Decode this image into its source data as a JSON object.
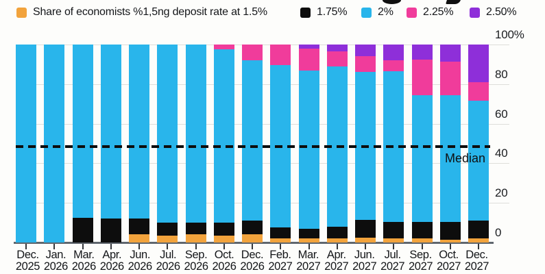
{
  "legend": {
    "items": [
      {
        "label": "Share of economists %1,5ng deposit rate at 1.5%",
        "color": "#f2a33c"
      },
      {
        "label": "1.75%",
        "color": "#0d0d0d"
      },
      {
        "label": "2%",
        "color": "#29b5eb"
      },
      {
        "label": "2.25%",
        "color": "#f03c9b"
      },
      {
        "label": "2.50%",
        "color": "#8e2fd9"
      }
    ]
  },
  "chart_data": {
    "type": "bar",
    "stacked": true,
    "legend_position": "top",
    "grid": "horizontal",
    "ylim": [
      0,
      100
    ],
    "yticks": [
      {
        "label": "100%",
        "value": 100
      },
      {
        "label": "80",
        "value": 80
      },
      {
        "label": "60",
        "value": 60
      },
      {
        "label": "40",
        "value": 40
      },
      {
        "label": "20",
        "value": 20
      },
      {
        "label": "0",
        "value": 0
      }
    ],
    "categories": [
      "Dec. 2025",
      "Jan. 2026",
      "Mar. 2026",
      "Apr. 2026",
      "Jun. 2026",
      "Jul. 2026",
      "Sep. 2026",
      "Oct. 2026",
      "Dec. 2026",
      "Feb. 2027",
      "Mar. 2027",
      "Apr. 2027",
      "Jun. 2027",
      "Jul. 2027",
      "Sep. 2027",
      "Oct. 2027",
      "Dec. 2027"
    ],
    "series": [
      {
        "name": "1.5%",
        "color": "#f2a33c",
        "values": [
          0,
          0,
          0,
          0,
          4,
          3.5,
          4,
          3.5,
          4,
          2,
          2,
          2,
          2.5,
          2,
          2,
          1.5,
          2
        ]
      },
      {
        "name": "1.75%",
        "color": "#0d0d0d",
        "values": [
          0,
          0,
          12.5,
          12,
          8,
          6.5,
          6,
          6.5,
          7,
          5.5,
          5,
          6,
          9,
          8.5,
          8.5,
          9,
          9
        ]
      },
      {
        "name": "2%",
        "color": "#29b5eb",
        "values": [
          100,
          100,
          87.5,
          88,
          88,
          90,
          90,
          87.5,
          81,
          82,
          80,
          81,
          74.5,
          76,
          64,
          64,
          60.5
        ]
      },
      {
        "name": "2.25%",
        "color": "#f03c9b",
        "values": [
          0,
          0,
          0,
          0,
          0,
          0,
          0,
          2.5,
          8,
          10.5,
          11,
          7.5,
          8,
          5.5,
          18,
          17,
          9.5
        ]
      },
      {
        "name": "2.50%",
        "color": "#8e2fd9",
        "values": [
          0,
          0,
          0,
          0,
          0,
          0,
          0,
          0,
          0,
          0,
          2,
          3.5,
          6,
          8,
          7.5,
          8.5,
          19
        ]
      }
    ],
    "median": {
      "label": "Median",
      "value": 48.5
    }
  }
}
